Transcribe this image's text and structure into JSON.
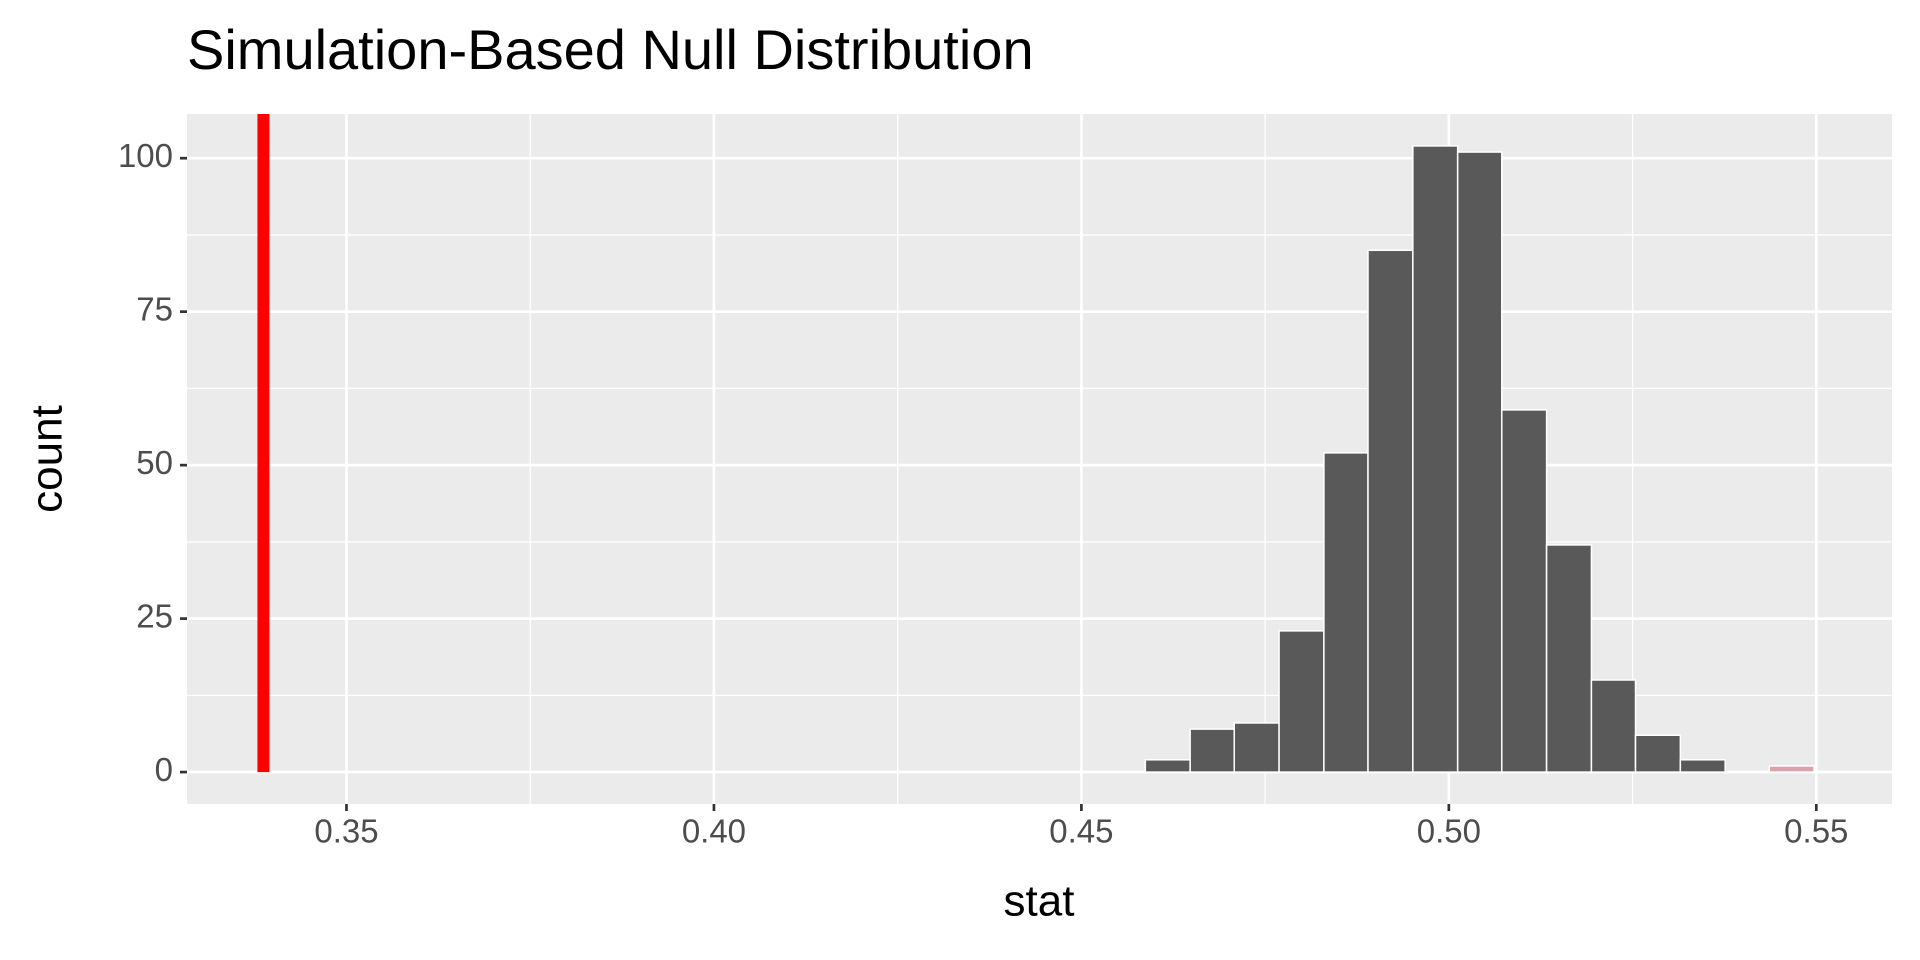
{
  "chart_data": {
    "type": "histogram",
    "title": "Simulation-Based Null Distribution",
    "x_label": "stat",
    "y_label": "count",
    "bins": [
      0.4587,
      0.4648,
      0.4708,
      0.4769,
      0.483,
      0.489,
      0.4951,
      0.5012,
      0.5072,
      0.5133,
      0.5194,
      0.5254,
      0.5315,
      0.5376,
      0.5436,
      0.5497
    ],
    "values": [
      2,
      7,
      8,
      23,
      52,
      85,
      102,
      101,
      59,
      37,
      15,
      6,
      2,
      0,
      1
    ],
    "colors": [
      "#595959",
      "#595959",
      "#595959",
      "#595959",
      "#595959",
      "#595959",
      "#595959",
      "#595959",
      "#595959",
      "#595959",
      "#595959",
      "#595959",
      "#595959",
      "#595959",
      "#d9a2ad"
    ],
    "vline": {
      "x": 0.3387,
      "color": "#ff0000"
    },
    "xlim": [
      0.3283,
      0.5603
    ],
    "ylim": [
      -5.2,
      107.2
    ],
    "xticks": [
      0.35,
      {
        "value": 0.4,
        "label": "0.40"
      },
      0.45,
      {
        "value": 0.5,
        "label": "0.50"
      },
      0.55
    ],
    "yticks": [
      0,
      25,
      50,
      75,
      100
    ],
    "xminor": [
      0.375,
      0.425,
      0.475,
      0.525
    ],
    "yminor": [
      12.5,
      37.5,
      62.5,
      87.5
    ],
    "grid": true
  }
}
